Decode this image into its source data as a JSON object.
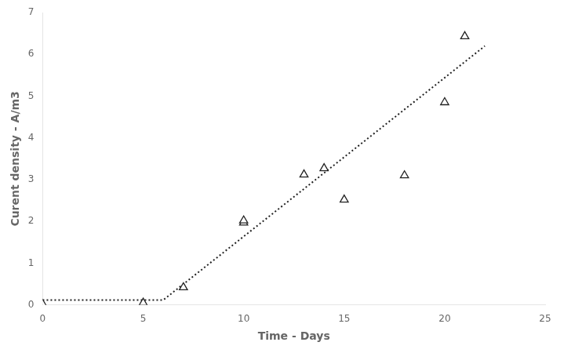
{
  "chart_data": {
    "type": "scatter",
    "xlabel": "Time - Days",
    "ylabel": "Curent density - A/m3",
    "xlim": [
      0,
      25
    ],
    "ylim": [
      0,
      7
    ],
    "xticks": [
      0,
      5,
      10,
      15,
      20,
      25
    ],
    "yticks": [
      0,
      1,
      2,
      3,
      4,
      5,
      6,
      7
    ],
    "grid": false,
    "series": [
      {
        "type": "line",
        "x": [
          0,
          6,
          22
        ],
        "values": [
          0.12,
          0.12,
          6.2
        ],
        "color": "#222222",
        "line_style": "dotted"
      },
      {
        "type": "scatter",
        "x": [
          0,
          5,
          7,
          10,
          10,
          13,
          14,
          15,
          18,
          20,
          21
        ],
        "values": [
          0.02,
          0.05,
          0.42,
          1.97,
          2.02,
          3.12,
          3.27,
          2.52,
          3.1,
          4.85,
          6.43
        ],
        "color": "#222222",
        "marker": "triangle"
      }
    ]
  }
}
